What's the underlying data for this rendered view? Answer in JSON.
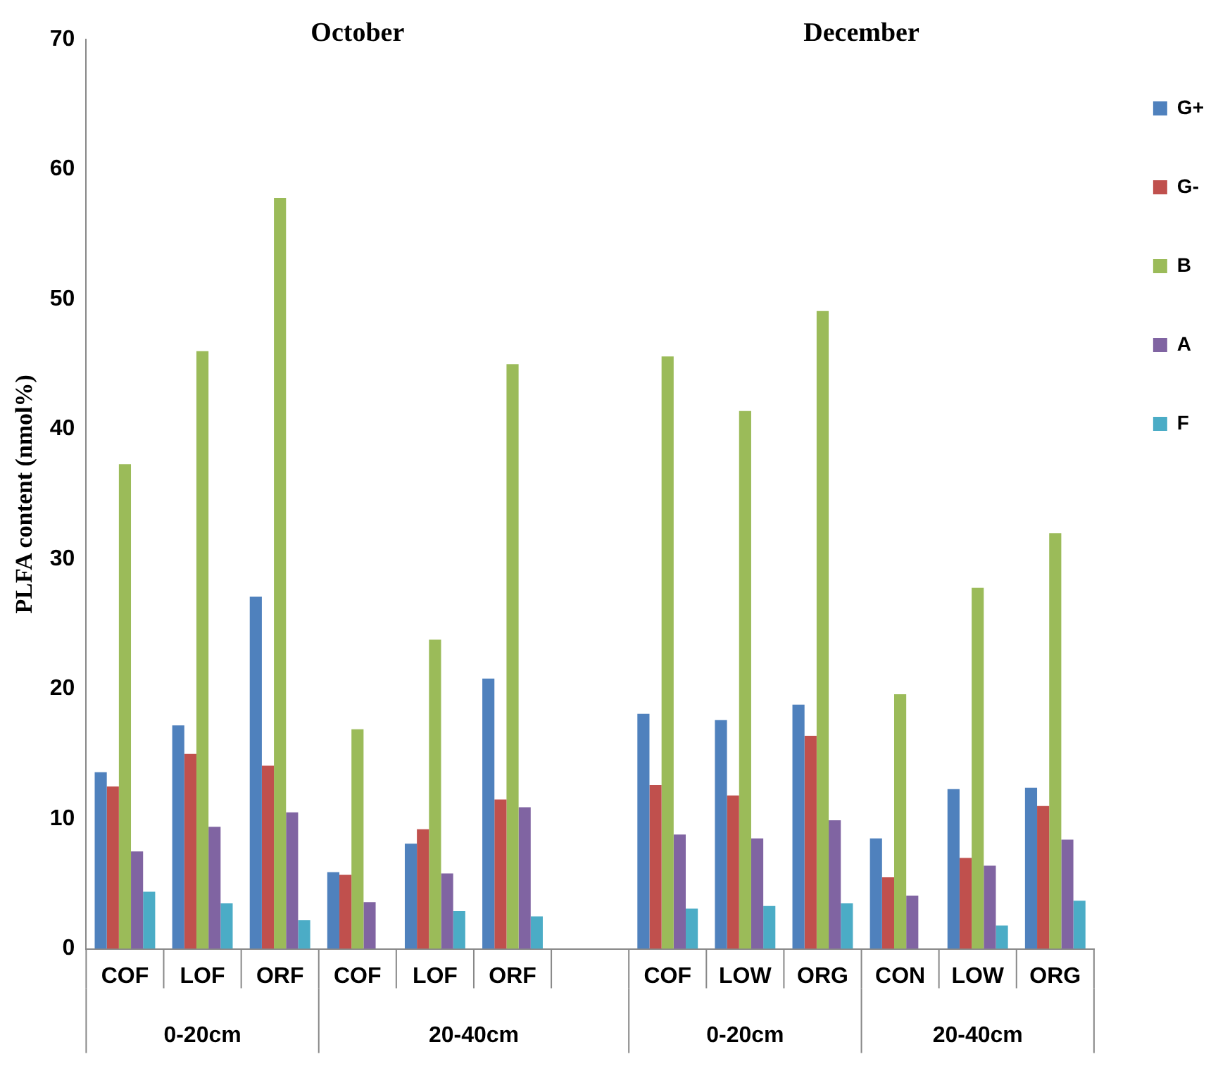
{
  "chart_data": {
    "type": "bar",
    "ylabel": "PLFA content (nmol%)",
    "categories": [
      "COF",
      "LOF",
      "ORF",
      "COF",
      "LOF",
      "ORF",
      null,
      "COF",
      "LOW",
      "ORG",
      "CON",
      "LOW",
      "ORG"
    ],
    "series": [
      {
        "name": "G+",
        "color": "#4f81bd",
        "values": [
          13.6,
          17.2,
          27.1,
          5.9,
          8.1,
          20.8,
          null,
          18.1,
          17.6,
          18.8,
          8.5,
          12.3,
          12.4
        ]
      },
      {
        "name": "G-",
        "color": "#c0504d",
        "values": [
          12.5,
          15.0,
          14.1,
          5.7,
          9.2,
          11.5,
          null,
          12.6,
          11.8,
          16.4,
          5.5,
          7.0,
          11.0
        ]
      },
      {
        "name": "B",
        "color": "#9bbb59",
        "values": [
          37.3,
          46.0,
          57.8,
          16.9,
          23.8,
          45.0,
          null,
          45.6,
          41.4,
          49.1,
          19.6,
          27.8,
          32.0
        ]
      },
      {
        "name": "A",
        "color": "#8064a2",
        "values": [
          7.5,
          9.4,
          10.5,
          3.6,
          5.8,
          10.9,
          null,
          8.8,
          8.5,
          9.9,
          4.1,
          6.4,
          8.4
        ]
      },
      {
        "name": "F",
        "color": "#4bacc6",
        "values": [
          4.4,
          3.5,
          2.2,
          null,
          2.9,
          2.5,
          null,
          3.1,
          3.3,
          3.5,
          null,
          1.8,
          3.7
        ]
      }
    ],
    "ylim": [
      0,
      70
    ],
    "yticks": [
      0,
      10,
      20,
      30,
      40,
      50,
      60,
      70
    ],
    "grid": false,
    "legend": "right",
    "annotations": [
      "October",
      "December",
      "0-20cm",
      "20-40cm",
      "0-20cm",
      "20-40cm"
    ]
  }
}
